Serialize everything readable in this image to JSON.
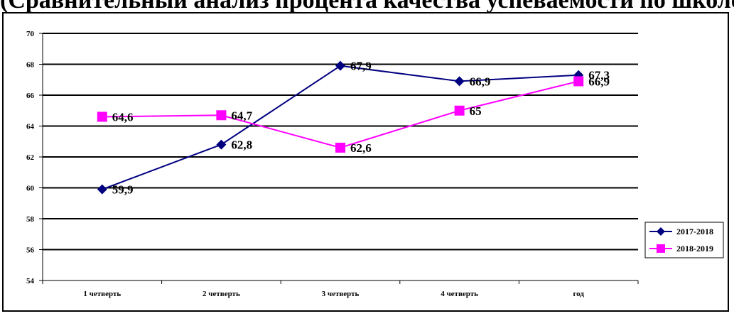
{
  "title": "(Сравнительный анализ процента качества успеваемости по школе)",
  "chart_data": {
    "type": "line",
    "categories": [
      "1 четверть",
      "2 четверть",
      "3 четверть",
      "4 четверть",
      "год"
    ],
    "series": [
      {
        "name": "2017-2018",
        "values": [
          59.9,
          62.8,
          67.9,
          66.9,
          67.3
        ],
        "labels": [
          "59,9",
          "62,8",
          "67,9",
          "66,9",
          "67,3"
        ],
        "color": "#000080",
        "marker": "diamond"
      },
      {
        "name": "2018-2019",
        "values": [
          64.6,
          64.7,
          62.6,
          65,
          66.9
        ],
        "labels": [
          "64,6",
          "64,7",
          "62,6",
          "65",
          "66,9"
        ],
        "color": "#ff00ff",
        "marker": "square"
      }
    ],
    "ylim": [
      54,
      70
    ],
    "yticks": [
      "54",
      "56",
      "58",
      "60",
      "62",
      "64",
      "66",
      "68",
      "70"
    ],
    "grid": true,
    "legend": "right"
  }
}
